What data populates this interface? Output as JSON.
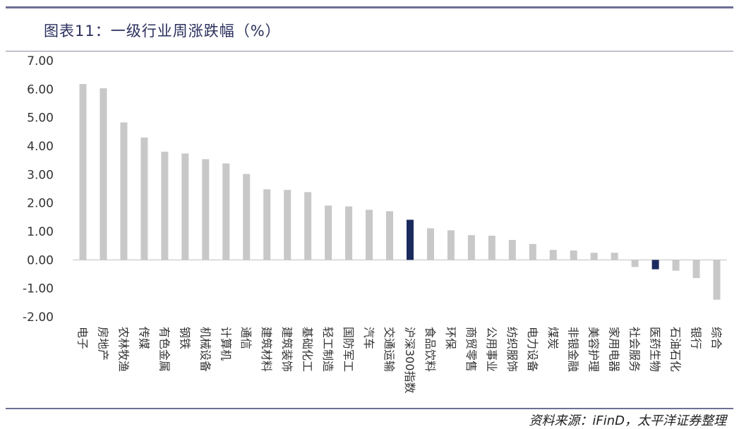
{
  "header": {
    "title": "图表11：一级行业周涨跌幅（%）"
  },
  "footer": {
    "source": "资料来源：iFinD，太平洋证券整理"
  },
  "chart_data": {
    "type": "bar",
    "title": "图表11：一级行业周涨跌幅（%）",
    "xlabel": "",
    "ylabel": "",
    "ylim": [
      -2.0,
      7.0
    ],
    "yticks": [
      "7.00",
      "6.00",
      "5.00",
      "4.00",
      "3.00",
      "2.00",
      "1.00",
      "0.00",
      "-1.00",
      "-2.00"
    ],
    "grid": false,
    "legend": "none",
    "colors": {
      "default": "#c8c8c8",
      "highlight": "#1b2a5e"
    },
    "highlight": [
      "沪深300指数",
      "医药生物"
    ],
    "categories": [
      "电子",
      "房地产",
      "农林牧渔",
      "传媒",
      "有色金属",
      "钢铁",
      "机械设备",
      "计算机",
      "通信",
      "建筑材料",
      "建筑装饰",
      "基础化工",
      "轻工制造",
      "国防军工",
      "汽车",
      "交通运输",
      "沪深300指数",
      "食品饮料",
      "环保",
      "商贸零售",
      "公用事业",
      "纺织服饰",
      "电力设备",
      "煤炭",
      "非银金融",
      "美容护理",
      "家用电器",
      "社会服务",
      "医药生物",
      "石油石化",
      "银行",
      "综合"
    ],
    "values": [
      6.18,
      6.03,
      4.83,
      4.3,
      3.8,
      3.74,
      3.54,
      3.39,
      3.02,
      2.48,
      2.46,
      2.38,
      1.91,
      1.88,
      1.76,
      1.71,
      1.41,
      1.11,
      1.04,
      0.87,
      0.85,
      0.7,
      0.56,
      0.35,
      0.33,
      0.25,
      0.25,
      -0.25,
      -0.33,
      -0.38,
      -0.64,
      -1.4
    ]
  }
}
